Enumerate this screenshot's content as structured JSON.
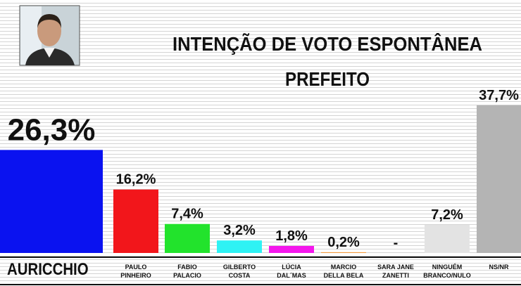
{
  "chart_data": {
    "type": "bar",
    "title": "INTENÇÃO DE VOTO ESPONTÂNEA",
    "subtitle": "PREFEITO",
    "categories": [
      "AURICCHIO",
      "PAULO\nPINHEIRO",
      "FABIO\nPALACIO",
      "GILBERTO\nCOSTA",
      "LÚCIA\nDAL´MAS",
      "MARCIO\nDELLA BELA",
      "SARA JANE\nZANETTI",
      "NINGUÉM\nBRANCO/NULO",
      "NS/NR"
    ],
    "values": [
      26.3,
      16.2,
      7.4,
      3.2,
      1.8,
      0.2,
      null,
      7.2,
      37.7
    ],
    "value_labels": [
      "26,3%",
      "16,2%",
      "7,4%",
      "3,2%",
      "1,8%",
      "0,2%",
      "-",
      "7,2%",
      "37,7%"
    ],
    "colors": [
      "#0a12f0",
      "#f2161b",
      "#22e32c",
      "#2ef2f4",
      "#f417ec",
      "#f39a3c",
      "#ffffff",
      "#e3e3e3",
      "#b4b4b4"
    ],
    "ylim": [
      0,
      40
    ]
  }
}
